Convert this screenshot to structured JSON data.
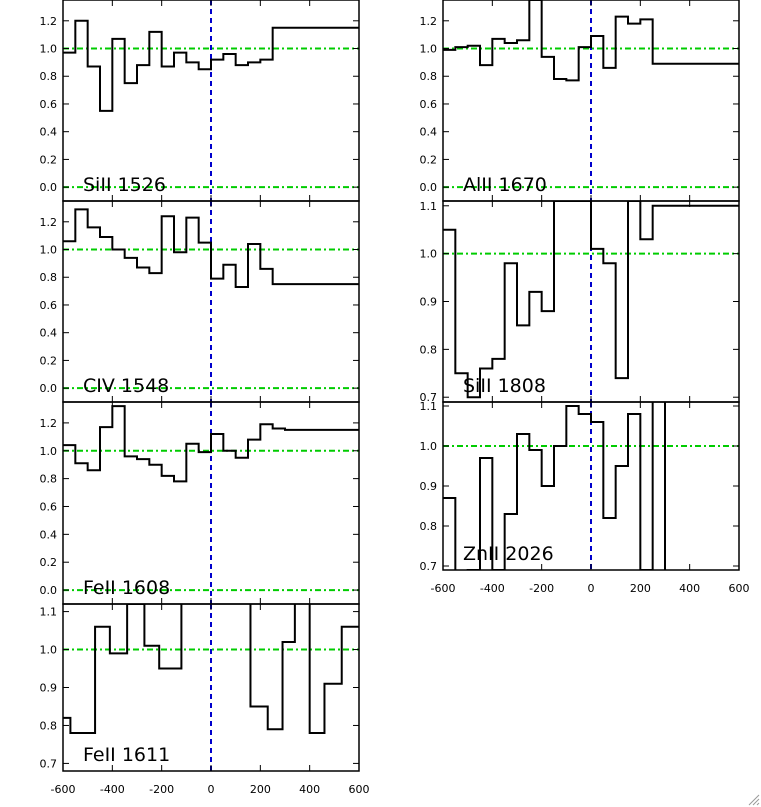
{
  "colors": {
    "frame": "#000000",
    "spectrum": "#000000",
    "continuum": "#00cc00",
    "zero_velocity": "#0000cc",
    "background": "#ffffff"
  },
  "chart_data": [
    {
      "type": "line",
      "step": true,
      "label": "SiII 1526",
      "column": "left",
      "row": 1,
      "xlim": [
        -600,
        600
      ],
      "ylim": [
        -0.1,
        1.35
      ],
      "yticks": [
        "0.0",
        "0.2",
        "0.4",
        "0.6",
        "0.8",
        "1.0",
        "1.2"
      ],
      "xticks": [],
      "reference_lines": {
        "continuum": [
          1.0,
          0.0
        ],
        "zero_velocity": 0
      },
      "x": [
        -600,
        -550,
        -500,
        -450,
        -400,
        -350,
        -300,
        -250,
        -200,
        -150,
        -100,
        -50,
        0,
        50,
        100,
        150,
        200,
        250,
        300,
        350,
        400,
        450,
        500,
        550,
        600
      ],
      "y": [
        0.97,
        1.2,
        0.87,
        0.55,
        1.07,
        0.75,
        0.88,
        1.12,
        0.87,
        0.97,
        0.9,
        0.85,
        0.92,
        0.96,
        0.88,
        0.9,
        0.92,
        1.15,
        1.15,
        1.15,
        1.15,
        1.15,
        1.15,
        1.15,
        1.15
      ]
    },
    {
      "type": "line",
      "step": true,
      "label": "CIV 1548",
      "column": "left",
      "row": 2,
      "xlim": [
        -600,
        600
      ],
      "ylim": [
        -0.1,
        1.35
      ],
      "yticks": [
        "0.0",
        "0.2",
        "0.4",
        "0.6",
        "0.8",
        "1.0",
        "1.2"
      ],
      "xticks": [],
      "reference_lines": {
        "continuum": [
          1.0,
          0.0
        ],
        "zero_velocity": 0
      },
      "x": [
        -600,
        -550,
        -500,
        -450,
        -400,
        -350,
        -300,
        -250,
        -200,
        -150,
        -100,
        -50,
        0,
        50,
        100,
        150,
        200,
        250,
        300,
        350,
        400,
        450,
        500,
        550,
        600
      ],
      "y": [
        1.06,
        1.29,
        1.16,
        1.09,
        1.0,
        0.94,
        0.87,
        0.83,
        1.24,
        0.98,
        1.23,
        1.05,
        0.79,
        0.89,
        0.73,
        1.04,
        0.86,
        0.75,
        0.75,
        0.75,
        0.75,
        0.75,
        0.75,
        0.75,
        0.75
      ]
    },
    {
      "type": "line",
      "step": true,
      "label": "FeII 1608",
      "column": "left",
      "row": 3,
      "xlim": [
        -600,
        600
      ],
      "ylim": [
        -0.1,
        1.35
      ],
      "yticks": [
        "0.0",
        "0.2",
        "0.4",
        "0.6",
        "0.8",
        "1.0",
        "1.2"
      ],
      "xticks": [],
      "reference_lines": {
        "continuum": [
          1.0,
          0.0
        ],
        "zero_velocity": 0
      },
      "x": [
        -600,
        -550,
        -500,
        -450,
        -400,
        -350,
        -300,
        -250,
        -200,
        -150,
        -100,
        -50,
        0,
        50,
        100,
        150,
        200,
        250,
        300,
        350,
        400,
        450,
        500,
        550,
        600
      ],
      "y": [
        1.04,
        0.91,
        0.86,
        1.17,
        1.32,
        0.96,
        0.94,
        0.9,
        0.82,
        0.78,
        1.05,
        0.99,
        1.12,
        1.0,
        0.95,
        1.08,
        1.19,
        1.16,
        1.15,
        1.15,
        1.15,
        1.15,
        1.15,
        1.15,
        1.15
      ]
    },
    {
      "type": "line",
      "step": true,
      "label": "FeII 1611",
      "column": "left",
      "row": 4,
      "xlim": [
        -600,
        600
      ],
      "ylim": [
        0.68,
        1.12
      ],
      "yticks": [
        "0.7",
        "0.8",
        "0.9",
        "1.0",
        "1.1"
      ],
      "xticks": [
        "-600",
        "-400",
        "-200",
        "0",
        "200",
        "400",
        "600"
      ],
      "reference_lines": {
        "continuum": [
          1.0
        ],
        "zero_velocity": 0
      },
      "x": [
        -600,
        -570,
        -520,
        -470,
        -410,
        -340,
        -270,
        -210,
        -120,
        -80,
        -30,
        0,
        60,
        160,
        230,
        290,
        340,
        400,
        460,
        530,
        580,
        600
      ],
      "y": [
        0.82,
        0.78,
        0.78,
        1.06,
        0.99,
        1.12,
        1.01,
        0.95,
        1.14,
        1.14,
        1.14,
        1.14,
        1.14,
        0.85,
        0.79,
        1.02,
        1.14,
        0.78,
        0.91,
        1.06,
        1.06,
        1.06
      ]
    },
    {
      "type": "line",
      "step": true,
      "label": "AlII 1670",
      "column": "right",
      "row": 1,
      "xlim": [
        -600,
        600
      ],
      "ylim": [
        -0.1,
        1.35
      ],
      "yticks": [
        "0.0",
        "0.2",
        "0.4",
        "0.6",
        "0.8",
        "1.0",
        "1.2"
      ],
      "xticks": [],
      "reference_lines": {
        "continuum": [
          1.0,
          0.0
        ],
        "zero_velocity": 0
      },
      "x": [
        -600,
        -550,
        -500,
        -450,
        -400,
        -350,
        -300,
        -250,
        -200,
        -150,
        -100,
        -50,
        0,
        50,
        100,
        150,
        200,
        250,
        300,
        350,
        400,
        450,
        500,
        550,
        600
      ],
      "y": [
        0.99,
        1.01,
        1.02,
        0.88,
        1.07,
        1.04,
        1.06,
        1.35,
        0.94,
        0.78,
        0.77,
        1.01,
        1.09,
        0.86,
        1.23,
        1.18,
        1.21,
        0.89,
        0.89,
        0.89,
        0.89,
        0.89,
        0.89,
        0.89,
        0.89
      ]
    },
    {
      "type": "line",
      "step": true,
      "label": "SiII 1808",
      "column": "right",
      "row": 2,
      "xlim": [
        -600,
        600
      ],
      "ylim": [
        0.69,
        1.11
      ],
      "yticks": [
        "0.7",
        "0.8",
        "0.9",
        "1.0",
        "1.1"
      ],
      "xticks": [],
      "reference_lines": {
        "continuum": [
          1.0
        ],
        "zero_velocity": 0
      },
      "x": [
        -600,
        -550,
        -500,
        -450,
        -400,
        -350,
        -300,
        -250,
        -200,
        -150,
        -100,
        -50,
        0,
        50,
        100,
        150,
        200,
        250,
        300,
        350,
        400,
        450,
        500,
        550,
        600
      ],
      "y": [
        1.05,
        0.75,
        0.7,
        0.76,
        0.78,
        0.98,
        0.85,
        0.92,
        0.88,
        1.11,
        1.11,
        1.11,
        1.01,
        0.98,
        0.74,
        1.11,
        1.03,
        1.1,
        1.1,
        1.1,
        1.1,
        1.1,
        1.1,
        1.1,
        1.1
      ]
    },
    {
      "type": "line",
      "step": true,
      "label": "ZnII 2026",
      "column": "right",
      "row": 3,
      "xlim": [
        -600,
        600
      ],
      "ylim": [
        0.69,
        1.11
      ],
      "yticks": [
        "0.7",
        "0.8",
        "0.9",
        "1.0",
        "1.1"
      ],
      "xticks": [
        "-600",
        "-400",
        "-200",
        "0",
        "200",
        "400",
        "600"
      ],
      "reference_lines": {
        "continuum": [
          1.0
        ],
        "zero_velocity": 0
      },
      "x": [
        -600,
        -550,
        -500,
        -450,
        -400,
        -350,
        -300,
        -250,
        -200,
        -150,
        -100,
        -50,
        0,
        50,
        100,
        150,
        200,
        250,
        300,
        350,
        400,
        450,
        500,
        550,
        600
      ],
      "y": [
        0.87,
        0.68,
        0.69,
        0.97,
        0.69,
        0.83,
        1.03,
        0.99,
        0.9,
        1.0,
        1.1,
        1.08,
        1.06,
        0.82,
        0.95,
        1.08,
        0.69,
        1.12,
        0.68,
        0.68,
        0.68,
        0.68,
        0.68,
        0.68,
        0.68
      ]
    }
  ]
}
